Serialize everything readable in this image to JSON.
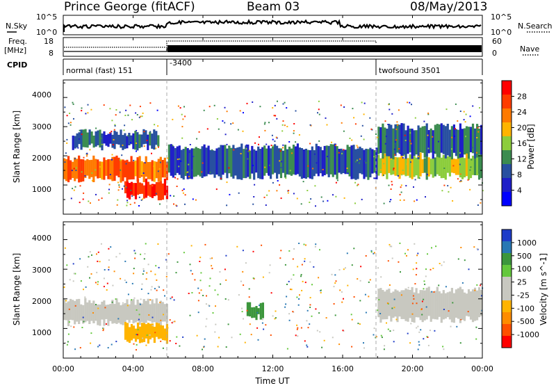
{
  "header": {
    "station": "Prince George (fitACF)",
    "beam": "Beam 03",
    "date": "08/May/2013"
  },
  "top_panels": {
    "nsky_label": "N.Sky",
    "nsky_ticks": [
      "10^5",
      "10^0"
    ],
    "nsearch_label": "N.Search",
    "nsearch_ticks": [
      "10^5",
      "10^0"
    ],
    "freq_label": "Freq.",
    "freq_unit": "[MHz]",
    "freq_ticks": [
      "18",
      "8"
    ],
    "nave_label": "Nave",
    "nave_ticks": [
      "60",
      "0"
    ],
    "cpid_label": "CPID",
    "cpid_segments": [
      {
        "label": "normal (fast) 151",
        "start_h": 0,
        "end_h": 6
      },
      {
        "label": "-3400",
        "start_h": 6,
        "end_h": 18
      },
      {
        "label": "twofsound 3501",
        "start_h": 18,
        "end_h": 24
      }
    ]
  },
  "power_panel": {
    "ylabel": "Slant Range [km]",
    "yticks": [
      "4000",
      "3000",
      "2000",
      "1000"
    ],
    "colorbar_label": "Power [dB]",
    "colorbar_ticks": [
      "28",
      "24",
      "20",
      "16",
      "12",
      "8",
      "4"
    ],
    "colors": [
      "#ff0000",
      "#ff3c00",
      "#ff7a00",
      "#ffb400",
      "#8ccd3c",
      "#3c8c50",
      "#2850a0",
      "#1e1ec8",
      "#0000ff"
    ]
  },
  "velocity_panel": {
    "ylabel": "Slant Range [km]",
    "yticks": [
      "4000",
      "3000",
      "2000",
      "1000"
    ],
    "colorbar_label": "Velocity [m s^-1]",
    "colorbar_ticks": [
      "1000",
      "500",
      "100",
      "25",
      "-25",
      "-100",
      "-500",
      "-1000"
    ],
    "colors": [
      "#1e3cc8",
      "#2878b4",
      "#3c963c",
      "#64c83c",
      "#c8c8c0",
      "#c8c8c0",
      "#ffb400",
      "#ff8c00",
      "#ff5000",
      "#ff0000"
    ]
  },
  "xaxis": {
    "label": "Time UT",
    "ticks": [
      "00:00",
      "04:00",
      "08:00",
      "12:00",
      "16:00",
      "20:00",
      "00:00"
    ]
  },
  "chart_data": [
    {
      "type": "heatmap",
      "title": "Power [dB]",
      "xlabel": "Time UT",
      "ylabel": "Slant Range [km]",
      "xlim_hours": [
        0,
        24
      ],
      "ylim": [
        0,
        4600
      ],
      "colorbar_range": [
        0,
        30
      ],
      "bands": [
        {
          "t0": 0.0,
          "t1": 6.0,
          "r0": 1200,
          "r1": 1900,
          "value": 24
        },
        {
          "t0": 0.5,
          "t1": 5.5,
          "r0": 2300,
          "r1": 2800,
          "value": 8
        },
        {
          "t0": 3.5,
          "t1": 6.0,
          "r0": 600,
          "r1": 1100,
          "value": 28
        },
        {
          "t0": 6.0,
          "t1": 18.0,
          "r0": 1300,
          "r1": 2300,
          "value": 8
        },
        {
          "t0": 18.0,
          "t1": 24.0,
          "r0": 1300,
          "r1": 2000,
          "value": 16
        },
        {
          "t0": 18.0,
          "t1": 24.0,
          "r0": 2000,
          "r1": 3000,
          "value": 8
        }
      ]
    },
    {
      "type": "heatmap",
      "title": "Velocity [m s^-1]",
      "xlabel": "Time UT",
      "ylabel": "Slant Range [km]",
      "xlim_hours": [
        0,
        24
      ],
      "ylim": [
        0,
        4600
      ],
      "colorbar_range": [
        -1000,
        1000
      ],
      "bands": [
        {
          "t0": 0.0,
          "t1": 6.0,
          "r0": 1200,
          "r1": 1900,
          "value": 0
        },
        {
          "t0": 3.5,
          "t1": 6.0,
          "r0": 600,
          "r1": 1100,
          "value": -300
        },
        {
          "t0": 10.5,
          "t1": 11.5,
          "r0": 1400,
          "r1": 1800,
          "value": 600
        },
        {
          "t0": 18.0,
          "t1": 24.0,
          "r0": 1300,
          "r1": 2300,
          "value": 0
        }
      ]
    }
  ]
}
